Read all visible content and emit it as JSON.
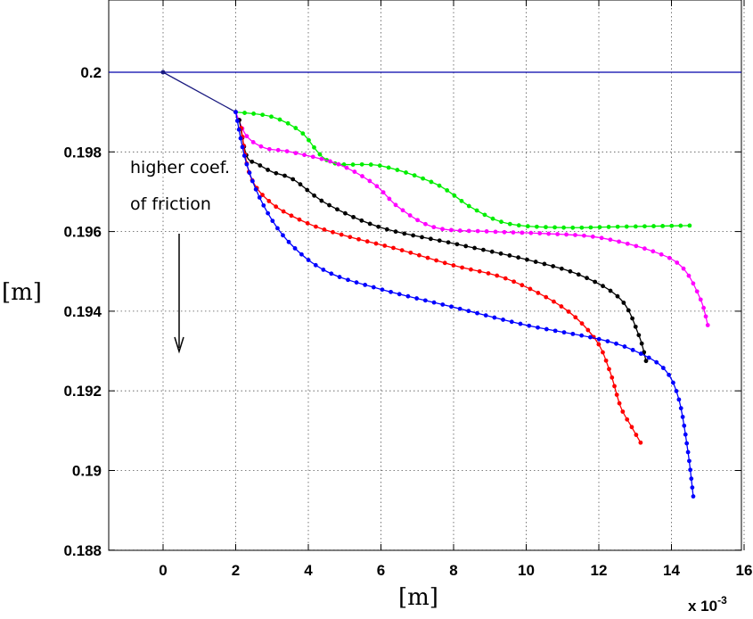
{
  "chart_data": {
    "type": "line",
    "title": "",
    "xlabel": "[m]",
    "ylabel": "[m]",
    "x_scale_note": "x 10",
    "x_scale_exponent": "-3",
    "xlim": [
      -1.5,
      16
    ],
    "ylim": [
      0.188,
      0.2
    ],
    "xticks": [
      "0",
      "2",
      "4",
      "6",
      "8",
      "10",
      "12",
      "14",
      "16"
    ],
    "yticks": [
      "0.188",
      "0.19",
      "0.192",
      "0.194",
      "0.196",
      "0.198",
      "0.2"
    ],
    "grid": true,
    "annotation": {
      "lines": [
        "higher coef.",
        "of friction"
      ],
      "arrow": "down"
    },
    "reference": {
      "name": "",
      "color": "#0000aa",
      "points": [
        [
          -1.5,
          0.2
        ],
        [
          16,
          0.2
        ]
      ]
    },
    "common_start": {
      "color": "#1a1a80",
      "points": [
        [
          0,
          0.2
        ],
        [
          2,
          0.199
        ]
      ]
    },
    "series": [
      {
        "color": "#00ee00",
        "points": [
          [
            2,
            0.199
          ],
          [
            3,
            0.19888
          ],
          [
            3.8,
            0.1985
          ],
          [
            4.6,
            0.19775
          ],
          [
            6,
            0.19765
          ],
          [
            7.5,
            0.1972
          ],
          [
            8.5,
            0.1966
          ],
          [
            9.5,
            0.1962
          ],
          [
            11,
            0.1961
          ],
          [
            12.5,
            0.19612
          ],
          [
            14.5,
            0.19615
          ]
        ]
      },
      {
        "color": "#ff00ff",
        "points": [
          [
            2,
            0.199
          ],
          [
            2.3,
            0.1984
          ],
          [
            2.8,
            0.1981
          ],
          [
            3.5,
            0.198
          ],
          [
            4.8,
            0.1977
          ],
          [
            5.8,
            0.1972
          ],
          [
            6.5,
            0.1966
          ],
          [
            7.5,
            0.1961
          ],
          [
            9,
            0.196
          ],
          [
            10.5,
            0.19595
          ],
          [
            12,
            0.19585
          ],
          [
            13.5,
            0.1955
          ],
          [
            14.3,
            0.1951
          ],
          [
            14.8,
            0.1943
          ],
          [
            15,
            0.19365
          ]
        ]
      },
      {
        "color": "#000000",
        "points": [
          [
            2.1,
            0.1988
          ],
          [
            2.3,
            0.1979
          ],
          [
            2.6,
            0.1977
          ],
          [
            3,
            0.1975
          ],
          [
            3.6,
            0.1973
          ],
          [
            4.5,
            0.1967
          ],
          [
            6,
            0.1961
          ],
          [
            8,
            0.1957
          ],
          [
            10,
            0.1953
          ],
          [
            11.5,
            0.1949
          ],
          [
            12.6,
            0.1943
          ],
          [
            13.1,
            0.1934
          ],
          [
            13.3,
            0.19275
          ]
        ]
      },
      {
        "color": "#ff0000",
        "points": [
          [
            2.15,
            0.1986
          ],
          [
            2.4,
            0.1974
          ],
          [
            3,
            0.1967
          ],
          [
            4,
            0.1962
          ],
          [
            5,
            0.1959
          ],
          [
            6.5,
            0.19555
          ],
          [
            8,
            0.19515
          ],
          [
            9.5,
            0.1948
          ],
          [
            11,
            0.1941
          ],
          [
            11.9,
            0.1933
          ],
          [
            12.3,
            0.1925
          ],
          [
            12.6,
            0.1916
          ],
          [
            12.9,
            0.1911
          ],
          [
            13.15,
            0.1907
          ]
        ]
      },
      {
        "color": "#0000ff",
        "points": [
          [
            2,
            0.199
          ],
          [
            2.3,
            0.1977
          ],
          [
            2.8,
            0.1966
          ],
          [
            3.5,
            0.1957
          ],
          [
            4.5,
            0.195
          ],
          [
            6,
            0.19455
          ],
          [
            8,
            0.1941
          ],
          [
            10,
            0.19365
          ],
          [
            12,
            0.1933
          ],
          [
            13,
            0.193
          ],
          [
            13.8,
            0.19255
          ],
          [
            14.2,
            0.1918
          ],
          [
            14.45,
            0.1905
          ],
          [
            14.6,
            0.18935
          ]
        ]
      }
    ]
  }
}
